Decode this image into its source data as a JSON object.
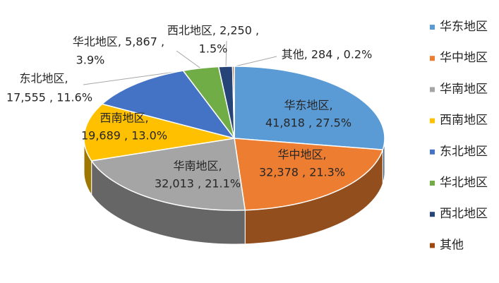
{
  "chart_data": {
    "type": "pie3d",
    "categories": [
      "华东地区",
      "华中地区",
      "华南地区",
      "西南地区",
      "东北地区",
      "华北地区",
      "西北地区",
      "其他"
    ],
    "values": [
      41818,
      32378,
      32013,
      19689,
      17555,
      5867,
      2250,
      284
    ],
    "value_labels": [
      [
        "华东地区,",
        "41,818 , 27.5%"
      ],
      [
        "华中地区,",
        "32,378 , 21.3%"
      ],
      [
        "华南地区,",
        "32,013 , 21.1%"
      ],
      [
        "西南地区,",
        "19,689 , 13.0%"
      ],
      [
        "东北地区,",
        "17,555 , 11.6%"
      ],
      [
        "华北地区, 5,867 ,",
        "3.9%"
      ],
      [
        "西北地区, 2,250 ,",
        "1.5%"
      ],
      [
        "其他, 284 , 0.2%"
      ]
    ],
    "colors": [
      "#5b9bd5",
      "#ed7d31",
      "#a5a5a5",
      "#ffc000",
      "#4472c4",
      "#70ad47",
      "#264478",
      "#9e480e"
    ],
    "legend": "right"
  }
}
